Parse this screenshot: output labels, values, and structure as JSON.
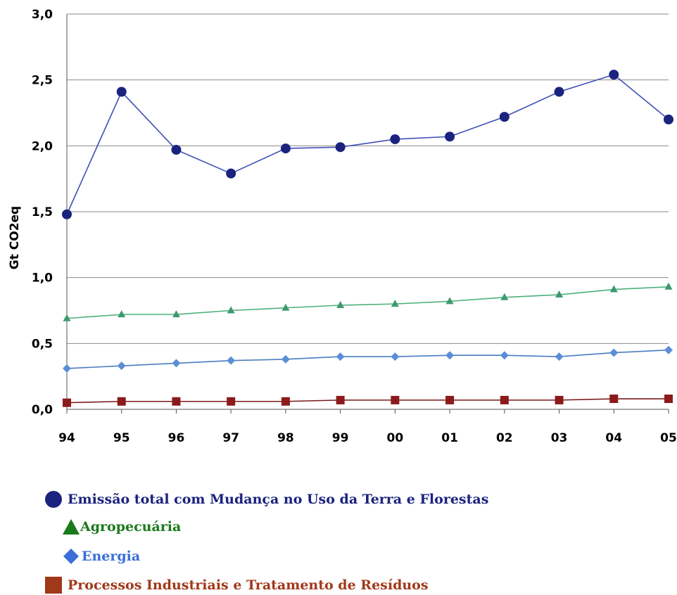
{
  "chart_data": {
    "type": "line",
    "xlabel": "",
    "ylabel": "Gt CO2eq",
    "ylim": [
      0,
      3.0
    ],
    "yticks": [
      "0,0",
      "0,5",
      "1,0",
      "1,5",
      "2,0",
      "2,5",
      "3,0"
    ],
    "grid": true,
    "legend_position": "bottom",
    "categories": [
      "94",
      "95",
      "96",
      "97",
      "98",
      "99",
      "00",
      "01",
      "02",
      "03",
      "04",
      "05"
    ],
    "series": [
      {
        "name": "Emissão total com Mudança no Uso da Terra e Florestas",
        "marker": "circle",
        "color": "#1a237e",
        "line_color": "#3f4fb5",
        "values": [
          1.48,
          2.41,
          1.97,
          1.79,
          1.98,
          1.99,
          2.05,
          2.07,
          2.22,
          2.41,
          2.54,
          2.2
        ]
      },
      {
        "name": "Agropecuária",
        "marker": "triangle",
        "color": "#3e9a6b",
        "line_color": "#4caf7d",
        "legend_color": "#1b7a1b",
        "values": [
          0.69,
          0.72,
          0.72,
          0.75,
          0.77,
          0.79,
          0.8,
          0.82,
          0.85,
          0.87,
          0.91,
          0.93
        ]
      },
      {
        "name": "Energia",
        "marker": "diamond",
        "color": "#5b8ed6",
        "line_color": "#4a7cc0",
        "legend_color": "#3a6fd8",
        "values": [
          0.31,
          0.33,
          0.35,
          0.37,
          0.38,
          0.4,
          0.4,
          0.41,
          0.41,
          0.4,
          0.43,
          0.45
        ]
      },
      {
        "name": "Processos Industriais e Tratamento de Resíduos",
        "marker": "square",
        "color": "#8b1a1a",
        "line_color": "#7a1a1a",
        "legend_color": "#a0391a",
        "values": [
          0.05,
          0.06,
          0.06,
          0.06,
          0.06,
          0.07,
          0.07,
          0.07,
          0.07,
          0.07,
          0.08,
          0.08
        ]
      }
    ]
  }
}
